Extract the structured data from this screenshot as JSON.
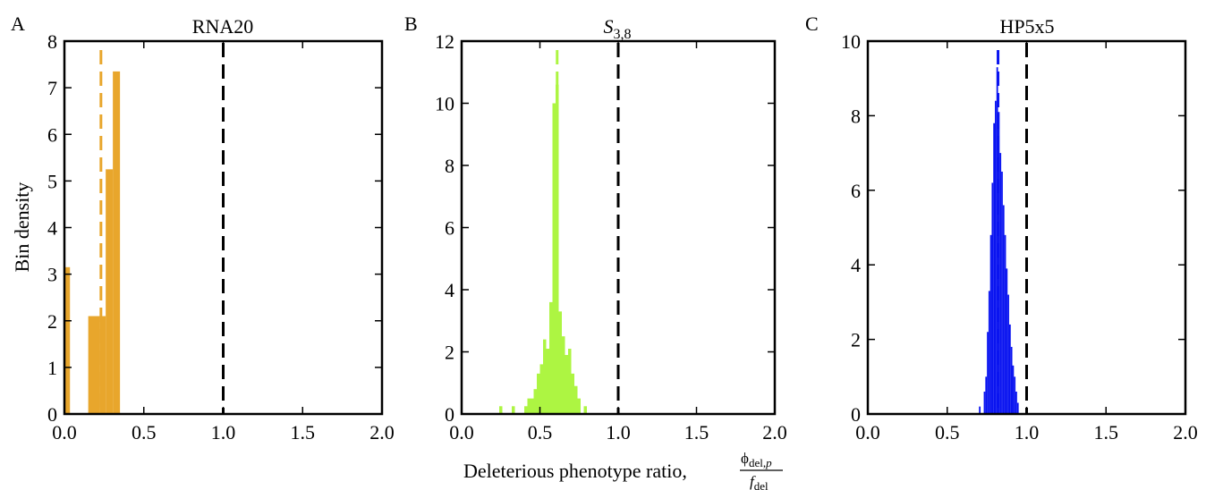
{
  "figure": {
    "xlabel_main": "Deleterious phenotype ratio,",
    "xlabel_frac_num_phi": "ϕ",
    "xlabel_frac_num_sub": "del,",
    "xlabel_frac_num_p": "p",
    "xlabel_frac_den_f": "f",
    "xlabel_frac_den_sub": "del",
    "ylabel": "Bin density"
  },
  "chart_data": [
    {
      "type": "bar",
      "panel": "A",
      "title": "RNA20",
      "color": "#e8a62c",
      "xlim": [
        0.0,
        2.0
      ],
      "ylim": [
        0,
        8
      ],
      "xticks": [
        "0.0",
        "0.5",
        "1.0",
        "1.5",
        "2.0"
      ],
      "yticks": [
        "0",
        "1",
        "2",
        "3",
        "4",
        "5",
        "6",
        "7",
        "8"
      ],
      "bins": [
        {
          "x0": 0.0,
          "x1": 0.035,
          "value": 3.15
        },
        {
          "x0": 0.15,
          "x1": 0.22,
          "value": 2.1
        },
        {
          "x0": 0.22,
          "x1": 0.26,
          "value": 2.1
        },
        {
          "x0": 0.26,
          "x1": 0.305,
          "value": 5.25
        },
        {
          "x0": 0.305,
          "x1": 0.35,
          "value": 7.35
        }
      ],
      "mean_line": {
        "x": 0.23,
        "color": "#e8a62c"
      },
      "reference_line": {
        "x": 1.0,
        "color": "#000000"
      }
    },
    {
      "type": "bar",
      "panel": "B",
      "title_main": "S",
      "title_sub": "3,8",
      "color": "#adf542",
      "xlim": [
        0.0,
        2.0
      ],
      "ylim": [
        0,
        12
      ],
      "xticks": [
        "0.0",
        "0.5",
        "1.0",
        "1.5",
        "2.0"
      ],
      "yticks": [
        "0",
        "2",
        "4",
        "6",
        "8",
        "10",
        "12"
      ],
      "bins": [
        {
          "x0": 0.24,
          "x1": 0.26,
          "value": 0.25
        },
        {
          "x0": 0.32,
          "x1": 0.34,
          "value": 0.25
        },
        {
          "x0": 0.4,
          "x1": 0.42,
          "value": 0.25
        },
        {
          "x0": 0.42,
          "x1": 0.44,
          "value": 0.5
        },
        {
          "x0": 0.44,
          "x1": 0.46,
          "value": 0.5
        },
        {
          "x0": 0.46,
          "x1": 0.48,
          "value": 0.8
        },
        {
          "x0": 0.48,
          "x1": 0.5,
          "value": 1.3
        },
        {
          "x0": 0.5,
          "x1": 0.52,
          "value": 1.6
        },
        {
          "x0": 0.52,
          "x1": 0.54,
          "value": 2.4
        },
        {
          "x0": 0.54,
          "x1": 0.56,
          "value": 2.1
        },
        {
          "x0": 0.56,
          "x1": 0.58,
          "value": 3.6
        },
        {
          "x0": 0.58,
          "x1": 0.6,
          "value": 10.0
        },
        {
          "x0": 0.6,
          "x1": 0.62,
          "value": 10.6
        },
        {
          "x0": 0.62,
          "x1": 0.64,
          "value": 3.3
        },
        {
          "x0": 0.64,
          "x1": 0.66,
          "value": 2.5
        },
        {
          "x0": 0.66,
          "x1": 0.68,
          "value": 1.9
        },
        {
          "x0": 0.68,
          "x1": 0.7,
          "value": 2.1
        },
        {
          "x0": 0.7,
          "x1": 0.72,
          "value": 1.3
        },
        {
          "x0": 0.72,
          "x1": 0.74,
          "value": 0.9
        },
        {
          "x0": 0.74,
          "x1": 0.76,
          "value": 0.5
        },
        {
          "x0": 0.78,
          "x1": 0.8,
          "value": 0.25
        }
      ],
      "mean_line": {
        "x": 0.61,
        "color": "#adf542"
      },
      "reference_line": {
        "x": 1.0,
        "color": "#000000"
      }
    },
    {
      "type": "bar",
      "panel": "C",
      "title": "HP5x5",
      "color": "#0a14f0",
      "xlim": [
        0.0,
        2.0
      ],
      "ylim": [
        0,
        10
      ],
      "xticks": [
        "0.0",
        "0.5",
        "1.0",
        "1.5",
        "2.0"
      ],
      "yticks": [
        "0",
        "2",
        "4",
        "6",
        "8",
        "10"
      ],
      "bins": [
        {
          "x0": 0.7,
          "x1": 0.71,
          "value": 0.2
        },
        {
          "x0": 0.73,
          "x1": 0.74,
          "value": 0.6
        },
        {
          "x0": 0.74,
          "x1": 0.75,
          "value": 1.0
        },
        {
          "x0": 0.75,
          "x1": 0.76,
          "value": 2.2
        },
        {
          "x0": 0.76,
          "x1": 0.77,
          "value": 3.3
        },
        {
          "x0": 0.77,
          "x1": 0.78,
          "value": 4.8
        },
        {
          "x0": 0.78,
          "x1": 0.79,
          "value": 6.2
        },
        {
          "x0": 0.79,
          "x1": 0.8,
          "value": 7.8
        },
        {
          "x0": 0.8,
          "x1": 0.81,
          "value": 8.4
        },
        {
          "x0": 0.81,
          "x1": 0.82,
          "value": 9.3
        },
        {
          "x0": 0.82,
          "x1": 0.83,
          "value": 8.1
        },
        {
          "x0": 0.83,
          "x1": 0.84,
          "value": 7.0
        },
        {
          "x0": 0.84,
          "x1": 0.85,
          "value": 6.5
        },
        {
          "x0": 0.85,
          "x1": 0.86,
          "value": 5.6
        },
        {
          "x0": 0.86,
          "x1": 0.87,
          "value": 4.8
        },
        {
          "x0": 0.87,
          "x1": 0.88,
          "value": 3.9
        },
        {
          "x0": 0.88,
          "x1": 0.89,
          "value": 3.2
        },
        {
          "x0": 0.89,
          "x1": 0.9,
          "value": 2.4
        },
        {
          "x0": 0.9,
          "x1": 0.91,
          "value": 1.8
        },
        {
          "x0": 0.91,
          "x1": 0.92,
          "value": 1.3
        },
        {
          "x0": 0.92,
          "x1": 0.93,
          "value": 1.0
        },
        {
          "x0": 0.93,
          "x1": 0.94,
          "value": 0.6
        },
        {
          "x0": 0.94,
          "x1": 0.95,
          "value": 0.3
        }
      ],
      "mean_line": {
        "x": 0.82,
        "color": "#0a14f0"
      },
      "reference_line": {
        "x": 1.0,
        "color": "#000000"
      }
    }
  ]
}
